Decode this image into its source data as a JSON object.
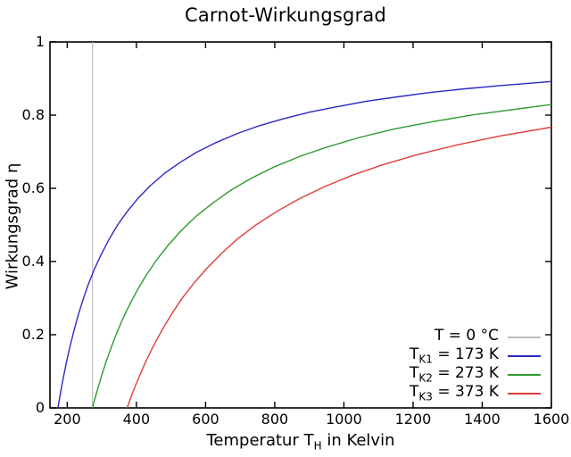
{
  "title": "Carnot-Wirkungsgrad",
  "chart_data": {
    "type": "line",
    "title": "Carnot-Wirkungsgrad",
    "xlabel_pre": "Temperatur T",
    "xlabel_sub": "H",
    "xlabel_post": " in Kelvin",
    "ylabel": "Wirkungsgrad η",
    "xlim": [
      150,
      1600
    ],
    "ylim": [
      0,
      1
    ],
    "x_ticks": [
      {
        "v": 200,
        "label": "200"
      },
      {
        "v": 400,
        "label": "400"
      },
      {
        "v": 600,
        "label": "600"
      },
      {
        "v": 800,
        "label": "800"
      },
      {
        "v": 1000,
        "label": "1000"
      },
      {
        "v": 1200,
        "label": "1200"
      },
      {
        "v": 1400,
        "label": "1400"
      },
      {
        "v": 1600,
        "label": "1600"
      }
    ],
    "y_ticks": [
      {
        "v": 0,
        "label": "0"
      },
      {
        "v": 0.2,
        "label": "0.2"
      },
      {
        "v": 0.4,
        "label": "0.4"
      },
      {
        "v": 0.6,
        "label": "0.6"
      },
      {
        "v": 0.8,
        "label": "0.8"
      },
      {
        "v": 1,
        "label": "1"
      }
    ],
    "grid": false,
    "legend_position": "bottom-right-inside-frameless",
    "series": [
      {
        "name": "T = 0 °C",
        "label_pre": "T",
        "label_sub": "",
        "label_post": " = 0 °C",
        "color": "#bdbdbd",
        "kind": "vline",
        "x": 273.15
      },
      {
        "name": "TK1 = 173 K",
        "label_pre": "T",
        "label_sub": "K1",
        "label_post": " = 173 K",
        "color": "#2929c4",
        "kind": "curve",
        "formula": "eta = 1 - 173/TH",
        "points": [
          [
            173,
            0
          ],
          [
            178,
            0.028
          ],
          [
            184,
            0.06
          ],
          [
            191,
            0.094
          ],
          [
            199,
            0.131
          ],
          [
            208,
            0.168
          ],
          [
            218,
            0.206
          ],
          [
            230,
            0.248
          ],
          [
            244,
            0.291
          ],
          [
            260,
            0.335
          ],
          [
            278,
            0.378
          ],
          [
            298,
            0.419
          ],
          [
            320,
            0.459
          ],
          [
            345,
            0.499
          ],
          [
            373,
            0.536
          ],
          [
            405,
            0.573
          ],
          [
            440,
            0.607
          ],
          [
            480,
            0.64
          ],
          [
            525,
            0.67
          ],
          [
            575,
            0.699
          ],
          [
            630,
            0.725
          ],
          [
            690,
            0.749
          ],
          [
            755,
            0.771
          ],
          [
            825,
            0.79
          ],
          [
            900,
            0.808
          ],
          [
            980,
            0.823
          ],
          [
            1065,
            0.838
          ],
          [
            1155,
            0.85
          ],
          [
            1250,
            0.862
          ],
          [
            1350,
            0.872
          ],
          [
            1455,
            0.881
          ],
          [
            1600,
            0.892
          ]
        ]
      },
      {
        "name": "TK2 = 273 K",
        "label_pre": "T",
        "label_sub": "K2",
        "label_post": " = 273 K",
        "color": "#2e9b2e",
        "kind": "curve",
        "formula": "eta = 1 - 273/TH",
        "points": [
          [
            273,
            0
          ],
          [
            279,
            0.022
          ],
          [
            286,
            0.045
          ],
          [
            294,
            0.071
          ],
          [
            303,
            0.099
          ],
          [
            314,
            0.131
          ],
          [
            327,
            0.165
          ],
          [
            342,
            0.202
          ],
          [
            359,
            0.24
          ],
          [
            379,
            0.28
          ],
          [
            402,
            0.321
          ],
          [
            428,
            0.362
          ],
          [
            458,
            0.404
          ],
          [
            492,
            0.445
          ],
          [
            530,
            0.485
          ],
          [
            573,
            0.524
          ],
          [
            621,
            0.56
          ],
          [
            675,
            0.596
          ],
          [
            735,
            0.629
          ],
          [
            800,
            0.659
          ],
          [
            875,
            0.688
          ],
          [
            955,
            0.714
          ],
          [
            1045,
            0.739
          ],
          [
            1145,
            0.762
          ],
          [
            1255,
            0.782
          ],
          [
            1375,
            0.801
          ],
          [
            1600,
            0.829
          ]
        ]
      },
      {
        "name": "TK3 = 373 K",
        "label_pre": "T",
        "label_sub": "K3",
        "label_post": " = 373 K",
        "color": "#e03c3c",
        "kind": "curve",
        "formula": "eta = 1 - 373/TH",
        "points": [
          [
            373,
            0
          ],
          [
            380,
            0.018
          ],
          [
            388,
            0.039
          ],
          [
            398,
            0.063
          ],
          [
            410,
            0.09
          ],
          [
            424,
            0.12
          ],
          [
            440,
            0.152
          ],
          [
            459,
            0.187
          ],
          [
            481,
            0.224
          ],
          [
            506,
            0.263
          ],
          [
            535,
            0.303
          ],
          [
            568,
            0.343
          ],
          [
            605,
            0.383
          ],
          [
            647,
            0.423
          ],
          [
            694,
            0.463
          ],
          [
            747,
            0.501
          ],
          [
            806,
            0.537
          ],
          [
            872,
            0.572
          ],
          [
            945,
            0.605
          ],
          [
            1025,
            0.636
          ],
          [
            1115,
            0.665
          ],
          [
            1215,
            0.693
          ],
          [
            1325,
            0.718
          ],
          [
            1450,
            0.743
          ],
          [
            1600,
            0.767
          ]
        ]
      }
    ],
    "frame_color": "#000000"
  }
}
